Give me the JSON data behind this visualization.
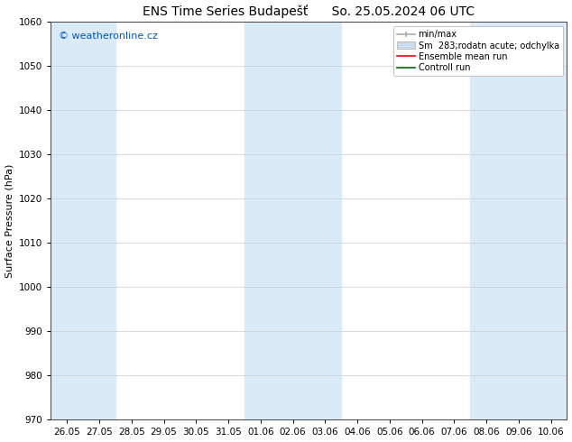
{
  "title_left": "ENS Time Series Budapešť",
  "title_right": "So. 25.05.2024 06 UTC",
  "ylabel": "Surface Pressure (hPa)",
  "ylim": [
    970,
    1060
  ],
  "yticks": [
    970,
    980,
    990,
    1000,
    1010,
    1020,
    1030,
    1040,
    1050,
    1060
  ],
  "xtick_labels": [
    "26.05",
    "27.05",
    "28.05",
    "29.05",
    "30.05",
    "31.05",
    "01.06",
    "02.06",
    "03.06",
    "04.06",
    "05.06",
    "06.06",
    "07.06",
    "08.06",
    "09.06",
    "10.06"
  ],
  "shaded_indices": [
    0,
    1,
    6,
    7,
    8,
    13,
    14,
    15
  ],
  "shaded_color": "#daeaf7",
  "background_color": "#ffffff",
  "watermark": "© weatheronline.cz",
  "watermark_color": "#0055cc",
  "legend_entries": [
    "min/max",
    "Sm  283;rodatn acute; odchylka",
    "Ensemble mean run",
    "Controll run"
  ],
  "legend_line_color": "#aaaaaa",
  "legend_fill_color": "#c8ddf0",
  "legend_red": "#ff0000",
  "legend_green": "#006600",
  "title_fontsize": 10,
  "ylabel_fontsize": 8,
  "tick_fontsize": 7.5,
  "legend_fontsize": 7
}
